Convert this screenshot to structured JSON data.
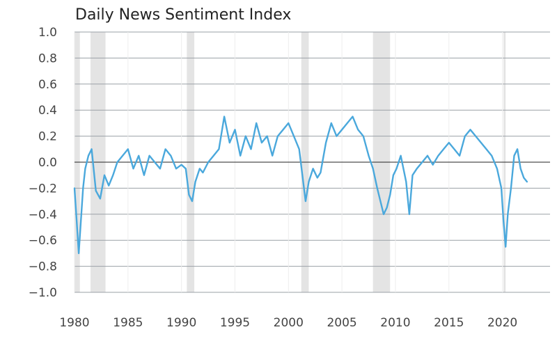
{
  "chart_data": {
    "type": "line",
    "title": "Daily News Sentiment Index",
    "xlabel": "",
    "ylabel": "",
    "xlim": [
      1980,
      2022.5
    ],
    "ylim": [
      -1.0,
      1.0
    ],
    "x_ticks": [
      "1980",
      "1985",
      "1990",
      "1995",
      "2000",
      "2005",
      "2010",
      "2015",
      "2020"
    ],
    "y_ticks": [
      "1.0",
      "0.8",
      "0.6",
      "0.4",
      "0.2",
      "0.0",
      "−0.2",
      "−0.4",
      "−0.6",
      "−0.8",
      "−1.0"
    ],
    "grid": "horizontal",
    "legend": "none",
    "colors": {
      "line": "#4aa8dc",
      "recession_shade": "#e4e4e4",
      "gridline": "#9aa0a6",
      "zero_line": "#222222"
    },
    "recessions": [
      {
        "start": 1980.0,
        "end": 1980.5
      },
      {
        "start": 1981.5,
        "end": 1982.9
      },
      {
        "start": 1990.5,
        "end": 1991.2
      },
      {
        "start": 2001.2,
        "end": 2001.9
      },
      {
        "start": 2007.9,
        "end": 2009.5
      },
      {
        "start": 2020.1,
        "end": 2020.3
      }
    ],
    "series": [
      {
        "x": [
          1980.0,
          1980.2,
          1980.4,
          1980.6,
          1980.8,
          1981.0,
          1981.3,
          1981.6,
          1982.0,
          1982.4,
          1982.8,
          1983.2,
          1983.6,
          1984.0,
          1984.5,
          1985.0,
          1985.5,
          1986.0,
          1986.5,
          1987.0,
          1987.5,
          1988.0,
          1988.5,
          1989.0,
          1989.5,
          1990.0,
          1990.4,
          1990.7,
          1991.0,
          1991.3,
          1991.7,
          1992.0,
          1992.5,
          1993.0,
          1993.5,
          1994.0,
          1994.5,
          1995.0,
          1995.5,
          1996.0,
          1996.5,
          1997.0,
          1997.5,
          1998.0,
          1998.5,
          1999.0,
          1999.5,
          2000.0,
          2000.5,
          2001.0,
          2001.3,
          2001.6,
          2001.9,
          2002.3,
          2002.7,
          2003.0,
          2003.5,
          2004.0,
          2004.5,
          2005.0,
          2005.5,
          2006.0,
          2006.5,
          2007.0,
          2007.5,
          2007.9,
          2008.3,
          2008.6,
          2008.9,
          2009.2,
          2009.5,
          2009.8,
          2010.1,
          2010.5,
          2011.0,
          2011.3,
          2011.6,
          2012.0,
          2012.5,
          2013.0,
          2013.5,
          2014.0,
          2014.5,
          2015.0,
          2015.5,
          2016.0,
          2016.5,
          2017.0,
          2017.5,
          2018.0,
          2018.5,
          2019.0,
          2019.5,
          2019.9,
          2020.1,
          2020.3,
          2020.5,
          2020.8,
          2021.1,
          2021.4,
          2021.7,
          2022.0,
          2022.3
        ],
        "y": [
          -0.2,
          -0.45,
          -0.7,
          -0.45,
          -0.2,
          -0.05,
          0.05,
          0.1,
          -0.22,
          -0.28,
          -0.1,
          -0.18,
          -0.1,
          0.0,
          0.05,
          0.1,
          -0.05,
          0.05,
          -0.1,
          0.05,
          0.0,
          -0.05,
          0.1,
          0.05,
          -0.05,
          -0.02,
          -0.05,
          -0.25,
          -0.3,
          -0.15,
          -0.05,
          -0.08,
          0.0,
          0.05,
          0.1,
          0.35,
          0.15,
          0.25,
          0.05,
          0.2,
          0.1,
          0.3,
          0.15,
          0.2,
          0.05,
          0.2,
          0.25,
          0.3,
          0.2,
          0.1,
          -0.1,
          -0.3,
          -0.15,
          -0.05,
          -0.12,
          -0.08,
          0.15,
          0.3,
          0.2,
          0.25,
          0.3,
          0.35,
          0.25,
          0.2,
          0.05,
          -0.05,
          -0.2,
          -0.3,
          -0.4,
          -0.35,
          -0.25,
          -0.1,
          -0.05,
          0.05,
          -0.15,
          -0.4,
          -0.1,
          -0.05,
          0.0,
          0.05,
          -0.02,
          0.05,
          0.1,
          0.15,
          0.1,
          0.05,
          0.2,
          0.25,
          0.2,
          0.15,
          0.1,
          0.05,
          -0.05,
          -0.2,
          -0.45,
          -0.65,
          -0.4,
          -0.2,
          0.05,
          0.1,
          -0.05,
          -0.12,
          -0.15
        ]
      }
    ]
  }
}
